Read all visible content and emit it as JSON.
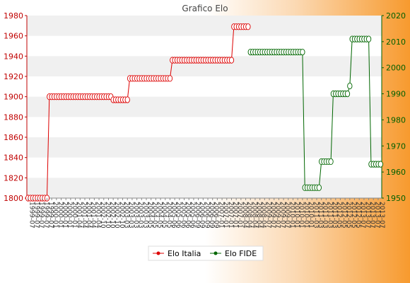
{
  "chart_data": {
    "type": "line",
    "title": "Grafico Elo",
    "y_left": {
      "ylim": [
        1800,
        1980
      ],
      "ticks": [
        1800,
        1820,
        1840,
        1860,
        1880,
        1900,
        1920,
        1940,
        1960,
        1980
      ]
    },
    "y_right": {
      "ylim": [
        1950,
        2020
      ],
      "ticks": [
        1950,
        1960,
        1970,
        1980,
        1990,
        2000,
        2010,
        2020
      ]
    },
    "x_label_samples": [
      "1999-07",
      "2000-01",
      "2001-04",
      "2002-10",
      "2003-03",
      "2004-05",
      "2005-06",
      "2006-09",
      "2007-01",
      "2008-04",
      "2009-07",
      "2010-01",
      "2011-03",
      "2012-05",
      "2013-07"
    ],
    "legend": {
      "position": "bottom",
      "items": [
        "Elo Italia",
        "Elo FIDE"
      ]
    },
    "colors": {
      "italia": "#dd0000",
      "fide": "#006600"
    },
    "series": [
      {
        "name": "Elo Italia",
        "axis": "left",
        "points": [
          [
            0,
            1800
          ],
          [
            1,
            1800
          ],
          [
            2,
            1800
          ],
          [
            3,
            1800
          ],
          [
            4,
            1800
          ],
          [
            5,
            1800
          ],
          [
            6,
            1800
          ],
          [
            7,
            1800
          ],
          [
            8,
            1800
          ],
          [
            9,
            1900
          ],
          [
            10,
            1900
          ],
          [
            11,
            1900
          ],
          [
            12,
            1900
          ],
          [
            13,
            1900
          ],
          [
            14,
            1900
          ],
          [
            15,
            1900
          ],
          [
            16,
            1900
          ],
          [
            17,
            1900
          ],
          [
            18,
            1900
          ],
          [
            19,
            1900
          ],
          [
            20,
            1900
          ],
          [
            21,
            1900
          ],
          [
            22,
            1900
          ],
          [
            23,
            1900
          ],
          [
            24,
            1900
          ],
          [
            25,
            1900
          ],
          [
            26,
            1900
          ],
          [
            27,
            1900
          ],
          [
            28,
            1900
          ],
          [
            29,
            1900
          ],
          [
            30,
            1900
          ],
          [
            31,
            1900
          ],
          [
            32,
            1900
          ],
          [
            33,
            1900
          ],
          [
            34,
            1900
          ],
          [
            35,
            1900
          ],
          [
            36,
            1897
          ],
          [
            37,
            1897
          ],
          [
            38,
            1897
          ],
          [
            39,
            1897
          ],
          [
            40,
            1897
          ],
          [
            41,
            1897
          ],
          [
            42,
            1897
          ],
          [
            43,
            1918
          ],
          [
            44,
            1918
          ],
          [
            45,
            1918
          ],
          [
            46,
            1918
          ],
          [
            47,
            1918
          ],
          [
            48,
            1918
          ],
          [
            49,
            1918
          ],
          [
            50,
            1918
          ],
          [
            51,
            1918
          ],
          [
            52,
            1918
          ],
          [
            53,
            1918
          ],
          [
            54,
            1918
          ],
          [
            55,
            1918
          ],
          [
            56,
            1918
          ],
          [
            57,
            1918
          ],
          [
            58,
            1918
          ],
          [
            59,
            1918
          ],
          [
            60,
            1918
          ],
          [
            61,
            1936
          ],
          [
            62,
            1936
          ],
          [
            63,
            1936
          ],
          [
            64,
            1936
          ],
          [
            65,
            1936
          ],
          [
            66,
            1936
          ],
          [
            67,
            1936
          ],
          [
            68,
            1936
          ],
          [
            69,
            1936
          ],
          [
            70,
            1936
          ],
          [
            71,
            1936
          ],
          [
            72,
            1936
          ],
          [
            73,
            1936
          ],
          [
            74,
            1936
          ],
          [
            75,
            1936
          ],
          [
            76,
            1936
          ],
          [
            77,
            1936
          ],
          [
            78,
            1936
          ],
          [
            79,
            1936
          ],
          [
            80,
            1936
          ],
          [
            81,
            1936
          ],
          [
            82,
            1936
          ],
          [
            83,
            1936
          ],
          [
            84,
            1936
          ],
          [
            85,
            1936
          ],
          [
            86,
            1936
          ],
          [
            87,
            1969
          ],
          [
            88,
            1969
          ],
          [
            89,
            1969
          ],
          [
            90,
            1969
          ],
          [
            91,
            1969
          ],
          [
            92,
            1969
          ],
          [
            93,
            1969
          ]
        ]
      },
      {
        "name": "Elo FIDE",
        "axis": "right",
        "points": [
          [
            94,
            2006
          ],
          [
            95,
            2006
          ],
          [
            96,
            2006
          ],
          [
            97,
            2006
          ],
          [
            98,
            2006
          ],
          [
            99,
            2006
          ],
          [
            100,
            2006
          ],
          [
            101,
            2006
          ],
          [
            102,
            2006
          ],
          [
            103,
            2006
          ],
          [
            104,
            2006
          ],
          [
            105,
            2006
          ],
          [
            106,
            2006
          ],
          [
            107,
            2006
          ],
          [
            108,
            2006
          ],
          [
            109,
            2006
          ],
          [
            110,
            2006
          ],
          [
            111,
            2006
          ],
          [
            112,
            2006
          ],
          [
            113,
            2006
          ],
          [
            114,
            2006
          ],
          [
            115,
            2006
          ],
          [
            116,
            2006
          ],
          [
            117,
            1954
          ],
          [
            118,
            1954
          ],
          [
            119,
            1954
          ],
          [
            120,
            1954
          ],
          [
            121,
            1954
          ],
          [
            122,
            1954
          ],
          [
            123,
            1954
          ],
          [
            124,
            1964
          ],
          [
            125,
            1964
          ],
          [
            126,
            1964
          ],
          [
            127,
            1964
          ],
          [
            128,
            1964
          ],
          [
            129,
            1990
          ],
          [
            130,
            1990
          ],
          [
            131,
            1990
          ],
          [
            132,
            1990
          ],
          [
            133,
            1990
          ],
          [
            134,
            1990
          ],
          [
            135,
            1990
          ],
          [
            136,
            1993
          ],
          [
            137,
            2011
          ],
          [
            138,
            2011
          ],
          [
            139,
            2011
          ],
          [
            140,
            2011
          ],
          [
            141,
            2011
          ],
          [
            142,
            2011
          ],
          [
            143,
            2011
          ],
          [
            144,
            2011
          ],
          [
            145,
            1963
          ],
          [
            146,
            1963
          ],
          [
            147,
            1963
          ],
          [
            148,
            1963
          ],
          [
            149,
            1963
          ]
        ]
      }
    ]
  }
}
